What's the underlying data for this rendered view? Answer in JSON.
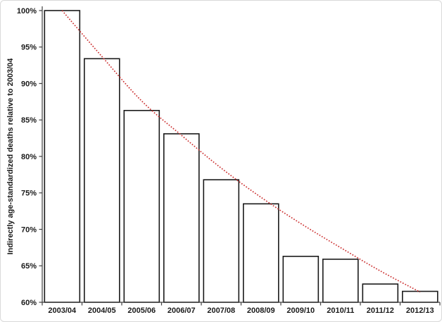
{
  "figure": {
    "background": "#ffffff",
    "border_color": "#d9d9d9"
  },
  "chart_data": {
    "type": "bar",
    "ylabel": "Indirectly age-standardized deaths relative to 2003/04",
    "categories": [
      "2003/04",
      "2004/05",
      "2005/06",
      "2006/07",
      "2007/08",
      "2008/09",
      "2009/10",
      "2010/11",
      "2011/12",
      "2012/13"
    ],
    "values": [
      100.0,
      93.4,
      86.3,
      83.1,
      76.8,
      73.5,
      66.3,
      65.9,
      62.5,
      61.5
    ],
    "value_unit": "%",
    "ylim": [
      60,
      100
    ],
    "ytick_step": 5,
    "ytick_labels": [
      "60%",
      "65%",
      "70%",
      "75%",
      "80%",
      "85%",
      "90%",
      "95%",
      "100%"
    ],
    "grid": false,
    "legend": "none",
    "bar_fill": "#ffffff",
    "bar_stroke": "#1a1a1a",
    "axis_color": "#404040",
    "text_color": "#1a1a1a",
    "trendline": {
      "style": "dotted",
      "color": "#cc3333",
      "values": [
        100.0,
        93.7,
        87.6,
        82.9,
        78.4,
        74.4,
        70.8,
        67.5,
        64.3,
        61.4
      ]
    }
  }
}
